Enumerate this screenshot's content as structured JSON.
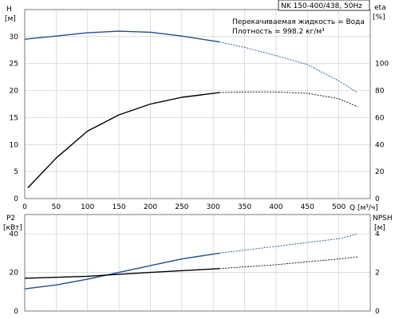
{
  "title": "NK 150-400/438, 50Hz",
  "fluid_line": "Перекачиваемая жидкость = Вода",
  "density_line": "Плотность = 998.2 кг/м³",
  "colors": {
    "blue": "#1f4e8c",
    "black": "#000000",
    "grid": "#cfcfcf"
  },
  "chart_data": [
    {
      "type": "line",
      "name": "head-efficiency",
      "xlabel": "Q [м³/ч]",
      "xlim": [
        0,
        550
      ],
      "x_ticks": [
        0,
        50,
        100,
        150,
        200,
        250,
        300,
        350,
        400,
        450,
        500
      ],
      "y_left": {
        "label_top": "H",
        "label_unit": "[м]",
        "lim": [
          0,
          35
        ],
        "ticks": [
          0,
          5,
          10,
          15,
          20,
          25,
          30
        ]
      },
      "y_right": {
        "label_top": "eta",
        "label_unit": "[%]",
        "lim": [
          0,
          140
        ],
        "ticks": [
          0,
          20,
          40,
          60,
          80,
          100
        ]
      },
      "grid": true,
      "series": [
        {
          "axis": "left",
          "color": "blue",
          "solid_until": 310,
          "x": [
            0,
            50,
            100,
            150,
            200,
            250,
            310,
            350,
            400,
            450,
            500,
            530
          ],
          "y": [
            29.5,
            30.1,
            30.7,
            31.0,
            30.8,
            30.1,
            29.0,
            28.0,
            26.5,
            24.8,
            21.8,
            19.6
          ]
        },
        {
          "axis": "right",
          "color": "black",
          "solid_until": 310,
          "x": [
            5,
            50,
            100,
            150,
            200,
            250,
            310,
            350,
            400,
            450,
            500,
            530
          ],
          "y": [
            8,
            30,
            50,
            62,
            70,
            75,
            78.5,
            79,
            79,
            78,
            74,
            68
          ]
        }
      ]
    },
    {
      "type": "line",
      "name": "power-npsh",
      "xlim": [
        0,
        550
      ],
      "y_left": {
        "label_top": "P2",
        "label_unit": "[кВт]",
        "lim": [
          0,
          50
        ],
        "ticks": [
          0,
          20,
          40
        ]
      },
      "y_right": {
        "label_top": "NPSH",
        "label_unit": "[м]",
        "lim": [
          0,
          5
        ],
        "ticks": [
          0,
          2,
          4
        ]
      },
      "grid": true,
      "series": [
        {
          "axis": "left",
          "color": "blue",
          "solid_until": 310,
          "x": [
            0,
            50,
            100,
            150,
            200,
            250,
            310,
            400,
            500,
            530
          ],
          "y": [
            11.5,
            13.5,
            16.5,
            20.0,
            23.5,
            27.0,
            30.0,
            33.5,
            37.5,
            40.0
          ]
        },
        {
          "axis": "right",
          "color": "black",
          "solid_until": 310,
          "x": [
            0,
            100,
            200,
            310,
            400,
            500,
            530
          ],
          "y": [
            1.7,
            1.8,
            2.0,
            2.2,
            2.4,
            2.7,
            2.8
          ]
        }
      ]
    }
  ]
}
